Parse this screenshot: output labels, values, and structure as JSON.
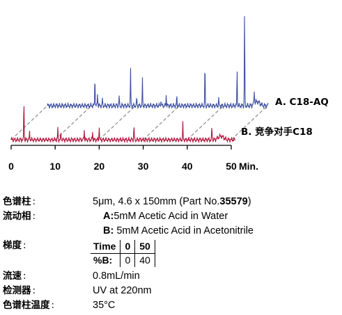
{
  "chart_data": {
    "type": "line",
    "title": "",
    "xlabel": "",
    "x_unit": "Min.",
    "xlim": [
      0,
      50
    ],
    "x_ticks": [
      0,
      10,
      20,
      30,
      40,
      50
    ],
    "x_tick_labels": [
      "0",
      "10",
      "20",
      "30",
      "40",
      "50"
    ],
    "grid": false,
    "legend_placement": "right",
    "series": [
      {
        "name": "A. C18-AQ",
        "color": "#3d4fa0",
        "peaks": [
          {
            "x": 10.8,
            "y": 0.24
          },
          {
            "x": 11.4,
            "y": 0.1
          },
          {
            "x": 12.5,
            "y": 0.05
          },
          {
            "x": 16.3,
            "y": 0.07
          },
          {
            "x": 18.9,
            "y": 0.28
          },
          {
            "x": 20.3,
            "y": 0.06
          },
          {
            "x": 21.6,
            "y": 0.2
          },
          {
            "x": 25.8,
            "y": 0.05
          },
          {
            "x": 27.0,
            "y": 0.09
          },
          {
            "x": 29.4,
            "y": 0.07
          },
          {
            "x": 35.8,
            "y": 0.32
          },
          {
            "x": 38.9,
            "y": 0.06
          },
          {
            "x": 43.1,
            "y": 0.28
          },
          {
            "x": 44.8,
            "y": 0.74
          },
          {
            "x": 47.0,
            "y": 0.1
          }
        ]
      },
      {
        "name": "B. 竞争对手C18",
        "color": "#b0153c",
        "peaks": [
          {
            "x": 2.9,
            "y": 0.34
          },
          {
            "x": 4.2,
            "y": 0.07
          },
          {
            "x": 10.6,
            "y": 0.1
          },
          {
            "x": 11.3,
            "y": 0.06
          },
          {
            "x": 16.6,
            "y": 0.09
          },
          {
            "x": 18.5,
            "y": 0.07
          },
          {
            "x": 20.0,
            "y": 0.12
          },
          {
            "x": 27.9,
            "y": 0.12
          },
          {
            "x": 39.0,
            "y": 0.14
          },
          {
            "x": 45.6,
            "y": 0.11
          }
        ]
      }
    ]
  },
  "conditions": {
    "column_label": "色谱柱",
    "column_value_prefix": "5μm, 4.6 x 150mm (Part No.",
    "column_part_no": "35579",
    "column_value_suffix": ")",
    "mobile_phase_label": "流动相",
    "mobile_a_key": "A:",
    "mobile_a_value": "5mM Acetic Acid in Water",
    "mobile_b_key": "B:",
    "mobile_b_value": " 5mM Acetic Acid in Acetonitrile",
    "gradient_label": "梯度",
    "gradient_table": {
      "headers": [
        "Time",
        "0",
        "50"
      ],
      "rows": [
        [
          "%B:",
          "0",
          "40"
        ]
      ]
    },
    "flow_label": "流速",
    "flow_value": "0.8mL/min",
    "detector_label": "检测器",
    "detector_value": "UV at 220nm",
    "temperature_label": "色谱柱温度",
    "temperature_value": "35°C"
  }
}
